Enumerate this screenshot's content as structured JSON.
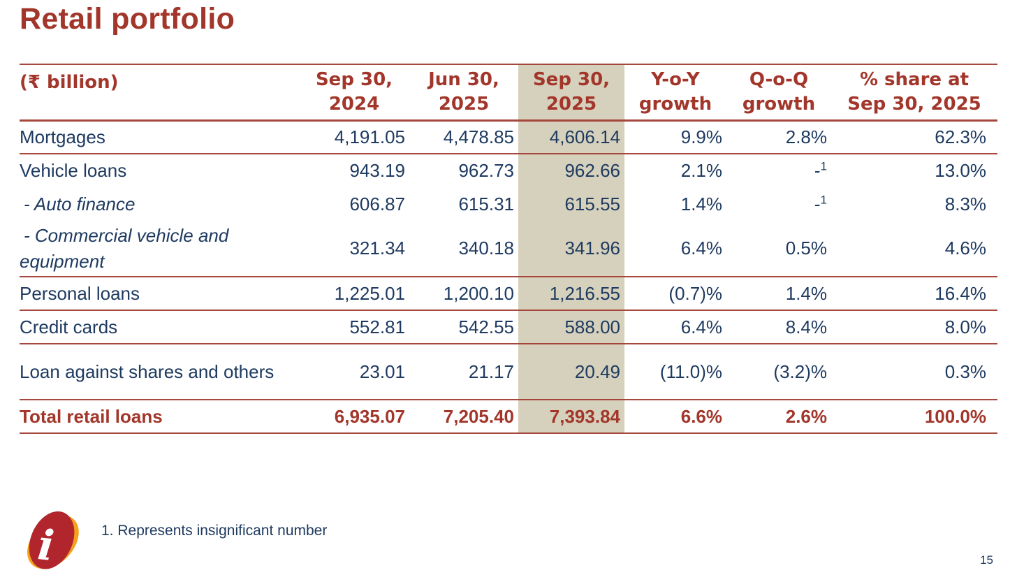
{
  "slide": {
    "title": "Retail portfolio",
    "footnote": "1. Represents insignificant number",
    "page_number": "15",
    "logo": "icici-i-logo"
  },
  "colors": {
    "accent_red": "#A2362A",
    "rule_red": "#A5473C",
    "navy_text": "#1E3A60",
    "highlight_column": "#D6D1BC",
    "logo_red": "#B1262D",
    "logo_orange": "#F5A11C",
    "background": "#FFFFFF"
  },
  "table": {
    "unit_label": "(₹ billion)",
    "highlighted_column": "Sep 30, 2025",
    "columns": [
      {
        "line1": "Sep 30,",
        "line2": "2024"
      },
      {
        "line1": "Jun 30,",
        "line2": "2025"
      },
      {
        "line1": "Sep 30,",
        "line2": "2025"
      },
      {
        "line1": "Y-o-Y",
        "line2": "growth"
      },
      {
        "line1": "Q-o-Q",
        "line2": "growth"
      },
      {
        "line1": "% share at",
        "line2": "Sep 30, 2025"
      }
    ],
    "rows": [
      {
        "label": "Mortgages",
        "style": "main",
        "tall": false,
        "sep": true,
        "values": [
          "4,191.05",
          "4,478.85",
          "4,606.14",
          "9.9%",
          "2.8%",
          "62.3%"
        ]
      },
      {
        "label": "Vehicle loans",
        "style": "main",
        "tall": false,
        "sep": false,
        "values": [
          "943.19",
          "962.73",
          "962.66",
          "2.1%",
          {
            "text": "-",
            "sup": "1"
          },
          "13.0%"
        ]
      },
      {
        "label": "- Auto finance",
        "style": "sub",
        "tall": false,
        "sep": false,
        "values": [
          "606.87",
          "615.31",
          "615.55",
          "1.4%",
          {
            "text": "-",
            "sup": "1"
          },
          "8.3%"
        ]
      },
      {
        "label": "- Commercial vehicle and equipment",
        "style": "sub",
        "tall": true,
        "sep": true,
        "values": [
          "321.34",
          "340.18",
          "341.96",
          "6.4%",
          "0.5%",
          "4.6%"
        ]
      },
      {
        "label": "Personal loans",
        "style": "main",
        "tall": false,
        "sep": true,
        "values": [
          "1,225.01",
          "1,200.10",
          "1,216.55",
          "(0.7)%",
          "1.4%",
          "16.4%"
        ]
      },
      {
        "label": "Credit cards",
        "style": "main",
        "tall": false,
        "sep": true,
        "values": [
          "552.81",
          "542.55",
          "588.00",
          "6.4%",
          "8.4%",
          "8.0%"
        ]
      },
      {
        "label": "Loan against shares and others",
        "style": "main",
        "tall": true,
        "sep": true,
        "values": [
          "23.01",
          "21.17",
          "20.49",
          "(11.0)%",
          "(3.2)%",
          "0.3%"
        ]
      },
      {
        "label": "Total retail loans",
        "style": "total",
        "tall": false,
        "sep": true,
        "values": [
          "6,935.07",
          "7,205.40",
          "7,393.84",
          "6.6%",
          "2.6%",
          "100.0%"
        ]
      }
    ]
  }
}
